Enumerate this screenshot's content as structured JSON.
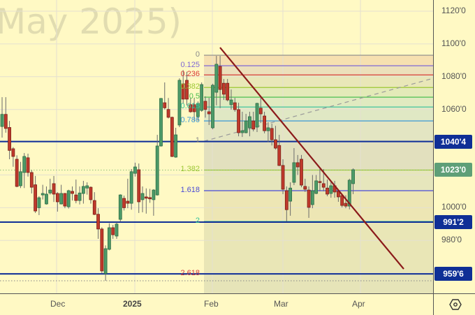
{
  "watermark": "May 2025)",
  "price_axis": {
    "ticks": [
      "1120'0",
      "1100'0",
      "1080'0",
      "1060'0",
      "1000'0",
      "980'0"
    ],
    "tick_values": [
      1120,
      1100,
      1080,
      1060,
      1000,
      980
    ],
    "tags": [
      {
        "label": "1040'4",
        "value": 1040.4,
        "color": "#0f2f96"
      },
      {
        "label": "1023'0",
        "value": 1023.0,
        "color": "#5e9f78"
      },
      {
        "label": "991'2",
        "value": 991.2,
        "color": "#0f2f96"
      },
      {
        "label": "959'6",
        "value": 959.6,
        "color": "#0f2f96"
      }
    ]
  },
  "time_axis": {
    "labels": [
      {
        "text": "Dec",
        "bold": false
      },
      {
        "text": "2025",
        "bold": true
      },
      {
        "text": "Feb",
        "bold": false
      },
      {
        "text": "Mar",
        "bold": false
      },
      {
        "text": "Apr",
        "bold": false
      }
    ]
  },
  "settings_icon": "gear-hexagon-icon",
  "chart_data": {
    "type": "candlestick",
    "ylim": [
      950,
      1125
    ],
    "grid": true,
    "colors": {
      "up": "#4c9a68",
      "down": "#c0392b",
      "wick": "#6b6b6b",
      "trendline": "#8b1a1a",
      "hline": "#0f2f96"
    },
    "candles_ohlc": [
      [
        1049.6,
        1067.5,
        1042.8,
        1057
      ],
      [
        1057,
        1067.5,
        1045.8,
        1048.4
      ],
      [
        1049,
        1053,
        1029.6,
        1035
      ],
      [
        1036,
        1037,
        1025,
        1031.3
      ],
      [
        1029.6,
        1032,
        1012.5,
        1013
      ],
      [
        1013.4,
        1028,
        1012,
        1022
      ],
      [
        1021.5,
        1033.4,
        1012,
        1031.3
      ],
      [
        1030.5,
        1033,
        1019,
        1021.5
      ],
      [
        1021.5,
        1023,
        1008.7,
        1012.5
      ],
      [
        1014,
        1019.4,
        996.8,
        998
      ],
      [
        1000,
        1007,
        995.5,
        1006.1
      ],
      [
        1007.8,
        1014,
        1005,
        1008.7
      ],
      [
        1002.3,
        1013,
        1001.9,
        1008.3
      ],
      [
        1009,
        1017.7,
        1008,
        1010.8
      ],
      [
        1014.7,
        1019.4,
        1003.5,
        1008.3
      ],
      [
        1008.7,
        1009.5,
        997.6,
        1003.6
      ],
      [
        1002.3,
        1014,
        1002,
        1008.7
      ],
      [
        1008.7,
        1009,
        999.7,
        1001
      ],
      [
        1000.6,
        1011,
        999.5,
        1010.4
      ],
      [
        1010,
        1013,
        1004.4,
        1008.7
      ],
      [
        1007.8,
        1017.2,
        1002.7,
        1004.4
      ],
      [
        1004.4,
        1013,
        1002,
        1009
      ],
      [
        1008.7,
        1016.4,
        1002.5,
        1013
      ],
      [
        1012,
        1015.5,
        1008,
        1013.4
      ],
      [
        1012.5,
        1013,
        1002.5,
        1004.9
      ],
      [
        1004.4,
        1009.5,
        995.5,
        995.9
      ],
      [
        996,
        999.7,
        981,
        987
      ],
      [
        987,
        988,
        960,
        961.4
      ],
      [
        959.7,
        977,
        955.4,
        975
      ],
      [
        974.6,
        990.5,
        974,
        987.8
      ],
      [
        987.8,
        989.5,
        981,
        983.5
      ],
      [
        982.7,
        991,
        981,
        990
      ],
      [
        992.9,
        1008.2,
        991.5,
        1007.8
      ],
      [
        1005.7,
        1007.4,
        998.3,
        1000
      ],
      [
        1004,
        1017.7,
        999.7,
        1002.7
      ],
      [
        1002.7,
        1023.6,
        998.8,
        1022
      ],
      [
        1021,
        1027.5,
        1019,
        1024.9
      ],
      [
        1023.2,
        1027,
        996.8,
        1003.6
      ],
      [
        1004.9,
        1013,
        997.2,
        1008.7
      ],
      [
        1006.6,
        1011.8,
        996.4,
        1005.8
      ],
      [
        1006.2,
        1011.5,
        1003,
        1005.4
      ],
      [
        1004.9,
        1011.3,
        995.1,
        1010.8
      ],
      [
        1007.8,
        1044.5,
        1007.4,
        1037.7
      ],
      [
        1037.7,
        1067,
        1037.3,
        1066.7
      ],
      [
        1064.1,
        1076.5,
        1060,
        1061
      ],
      [
        1060,
        1067,
        1054.5,
        1055.2
      ],
      [
        1055.2,
        1055.6,
        1030.9,
        1031.3
      ],
      [
        1030.9,
        1048.8,
        1030.5,
        1044.5
      ],
      [
        1050.5,
        1079,
        1049.2,
        1077.8
      ],
      [
        1075.7,
        1084,
        1063.7,
        1066.3
      ],
      [
        1077.8,
        1083,
        1062.5,
        1066.3
      ],
      [
        1062.9,
        1067.1,
        1058,
        1058.6
      ],
      [
        1062.9,
        1067,
        1053,
        1058.6
      ],
      [
        1055.6,
        1064.9,
        1053,
        1063.7
      ],
      [
        1059.4,
        1076.5,
        1058.6,
        1075.2
      ],
      [
        1065,
        1068,
        1055,
        1060
      ],
      [
        1058.6,
        1067.1,
        1050.5,
        1057.3
      ],
      [
        1048.8,
        1075.7,
        1047.9,
        1074.8
      ],
      [
        1070.5,
        1092.7,
        1062.5,
        1087.6
      ],
      [
        1086.3,
        1092.7,
        1060.8,
        1072.2
      ],
      [
        1076,
        1078.6,
        1065.8,
        1069.3
      ],
      [
        1076,
        1078.6,
        1064.9,
        1065.8
      ],
      [
        1062.9,
        1072.2,
        1059.9,
        1065.8
      ],
      [
        1064.1,
        1067.1,
        1058.6,
        1059.9
      ],
      [
        1059.9,
        1064.1,
        1043.6,
        1045.8
      ],
      [
        1045.8,
        1058.6,
        1043.2,
        1047
      ],
      [
        1045.8,
        1057.3,
        1045.4,
        1053
      ],
      [
        1048.8,
        1058.6,
        1043.6,
        1055.6
      ],
      [
        1053,
        1058.6,
        1046.6,
        1048
      ],
      [
        1049.2,
        1064.1,
        1046.2,
        1063.7
      ],
      [
        1060.8,
        1067.1,
        1051.7,
        1057.3
      ],
      [
        1056,
        1058.6,
        1045.4,
        1047
      ],
      [
        1047,
        1052.2,
        1040,
        1048.8
      ],
      [
        1048.4,
        1051.3,
        1038,
        1041.5
      ],
      [
        1041.5,
        1050,
        1035.5,
        1036.4
      ],
      [
        1038,
        1044.5,
        1025.4,
        1025.8
      ],
      [
        1025.8,
        1029.6,
        1008.3,
        1011.3
      ],
      [
        1010.4,
        1013,
        991.6,
        998.8
      ],
      [
        1004,
        1015.5,
        995.1,
        1012
      ],
      [
        1015.5,
        1036.4,
        1013.8,
        1027.5
      ],
      [
        1027.5,
        1032.2,
        1020,
        1024.9
      ],
      [
        1029.6,
        1032.2,
        1012.5,
        1013.8
      ],
      [
        1013,
        1017.7,
        1009.6,
        1011.3
      ],
      [
        1010.8,
        1013,
        993.8,
        1000.2
      ],
      [
        1001.9,
        1020,
        999.7,
        1010.4
      ],
      [
        1008.7,
        1020,
        1008.3,
        1016.4
      ],
      [
        1016,
        1023.6,
        1010,
        1015.5
      ],
      [
        1014.7,
        1023.6,
        1010,
        1012.5
      ],
      [
        1012,
        1017.2,
        1007,
        1008.3
      ],
      [
        1008.7,
        1016.4,
        1006.1,
        1013.4
      ],
      [
        1013.4,
        1016.4,
        1006.1,
        1009.6
      ],
      [
        1010,
        1010.8,
        1003.6,
        1006.6
      ],
      [
        1007.4,
        1008,
        1000.2,
        1001.4
      ],
      [
        1002.7,
        1007.6,
        999.7,
        1001
      ],
      [
        1001,
        1017.7,
        999,
        1016.8
      ],
      [
        1014.7,
        1024,
        1008.3,
        1023.2
      ]
    ],
    "fibonacci": [
      {
        "level": "0",
        "price": 1093.1,
        "color": "#8a8a8a",
        "band": "#f6e0b0"
      },
      {
        "level": "0.125",
        "price": 1086.7,
        "color": "#7f68d4",
        "band": "#ece0bb"
      },
      {
        "level": "0.236",
        "price": 1081.1,
        "color": "#d83a3a",
        "band": "#e9e7b8"
      },
      {
        "level": "0.382",
        "price": 1073.4,
        "color": "#9cc834",
        "band": "#e3eab8"
      },
      {
        "level": "0.5",
        "price": 1067.5,
        "color": "#4cc050",
        "band": "#e0eac0"
      },
      {
        "level": "0.618",
        "price": 1061.5,
        "color": "#2fc09a",
        "band": "#e0e8c4"
      },
      {
        "level": "0.786",
        "price": 1053.0,
        "color": "#3a98d6",
        "band": "#e3e5c2"
      },
      {
        "level": "1",
        "price": 1040.6,
        "color": "#8a8a8a",
        "band": "#e2e0be"
      },
      {
        "level": "1.382",
        "price": 1023.0,
        "color": "#9cc834",
        "band": "#e6e6bc"
      },
      {
        "level": "1.618",
        "price": 1010.4,
        "color": "#4a4ad6",
        "band": "#ede6b4"
      },
      {
        "level": "2",
        "price": 991.6,
        "color": "#2fc09a",
        "band": "#e9e6b6"
      },
      {
        "level": "2.618",
        "price": 959.6,
        "color": "#d83a3a",
        "band": null
      }
    ],
    "horizontal_lines": [
      1040.4,
      991.2,
      959.6
    ],
    "dotted_lines": [
      1023.0,
      955.4
    ],
    "trendline_prices": [
      1097.8,
      962.6
    ],
    "dashed_line_prices": [
      1040.6,
      1079.0
    ]
  }
}
